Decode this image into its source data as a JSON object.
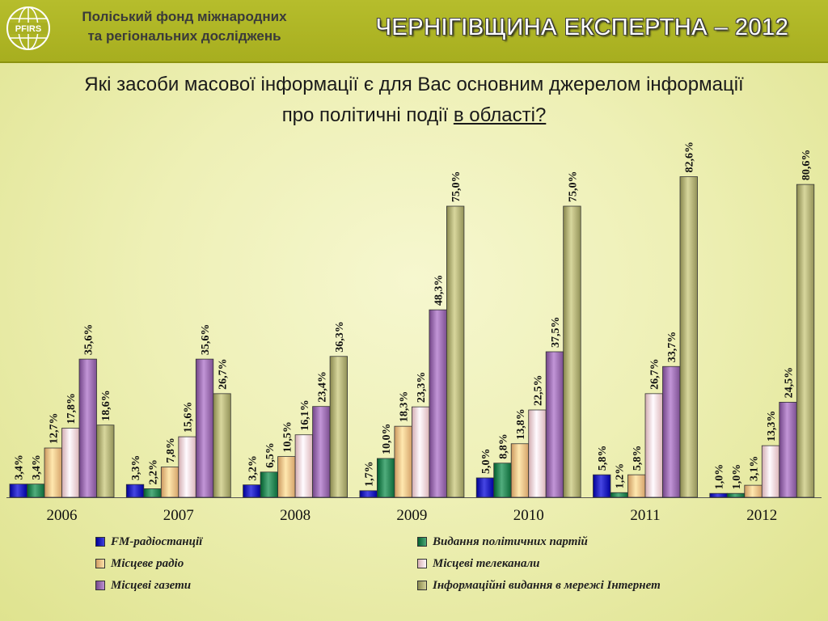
{
  "header": {
    "org_line1": "Поліський фонд міжнародних",
    "org_line2": "та регіональних досліджень",
    "logo_text": "PFIRS",
    "title": "ЧЕРНІГІВЩИНА ЕКСПЕРТНА – 2012"
  },
  "question": {
    "line1": "Які засоби масової інформації є для Вас основним джерелом інформації",
    "line2_main": "про політичні події ",
    "line2_underlined": "в області?"
  },
  "colors": {
    "FM-радіостанції": "#2323c0",
    "Видання політичних партій": "#2e8a5a",
    "Місцеве радіо": "#f8c58c",
    "Місцеві телеканали": "#ffd8dc",
    "Місцеві газети": "#9f72b4",
    "Інформаційні видання в мережі Інтернет": "#b5b47a"
  },
  "chart_data": {
    "type": "bar",
    "title": "Які засоби масової інформації є для Вас основним джерелом інформації про політичні події в області?",
    "categories": [
      "2006",
      "2007",
      "2008",
      "2009",
      "2010",
      "2011",
      "2012"
    ],
    "value_suffix": "%",
    "ylim": [
      0,
      90
    ],
    "grid": false,
    "legend_position": "bottom",
    "series": [
      {
        "name": "FM-радіостанції",
        "values": [
          3.4,
          3.3,
          3.2,
          1.7,
          5.0,
          5.8,
          1.0
        ],
        "labels": [
          "3,4",
          "3,3",
          "3,2",
          "1,7",
          "5,0",
          "5,8",
          "1,0"
        ]
      },
      {
        "name": "Видання політичних партій",
        "values": [
          3.4,
          2.2,
          6.5,
          10.0,
          8.8,
          1.2,
          1.0
        ],
        "labels": [
          "3,4",
          "2,2",
          "6,5",
          "10,0",
          "8,8",
          "1,2",
          "1,0"
        ]
      },
      {
        "name": "Місцеве радіо",
        "values": [
          12.7,
          7.8,
          10.5,
          18.3,
          13.8,
          5.8,
          3.1
        ],
        "labels": [
          "12,7",
          "7,8",
          "10,5",
          "18,3",
          "13,8",
          "5,8",
          "3,1"
        ]
      },
      {
        "name": "Місцеві телеканали",
        "values": [
          17.8,
          15.6,
          16.1,
          23.3,
          22.5,
          26.7,
          13.3
        ],
        "labels": [
          "17,8",
          "15,6",
          "16,1",
          "23,3",
          "22,5",
          "26,7",
          "13,3"
        ]
      },
      {
        "name": "Місцеві газети",
        "values": [
          35.6,
          35.6,
          23.4,
          48.3,
          37.5,
          33.7,
          24.5
        ],
        "labels": [
          "35,6",
          "35,6",
          "23,4",
          "48,3",
          "37,5",
          "33,7",
          "24,5"
        ]
      },
      {
        "name": "Інформаційні видання в мережі Інтернет",
        "values": [
          18.6,
          26.7,
          36.3,
          75.0,
          75.0,
          82.6,
          80.6
        ],
        "labels": [
          "18,6",
          "26,7",
          "36,3",
          "75,0",
          "75,0",
          "82,6",
          "80,6"
        ]
      }
    ]
  }
}
